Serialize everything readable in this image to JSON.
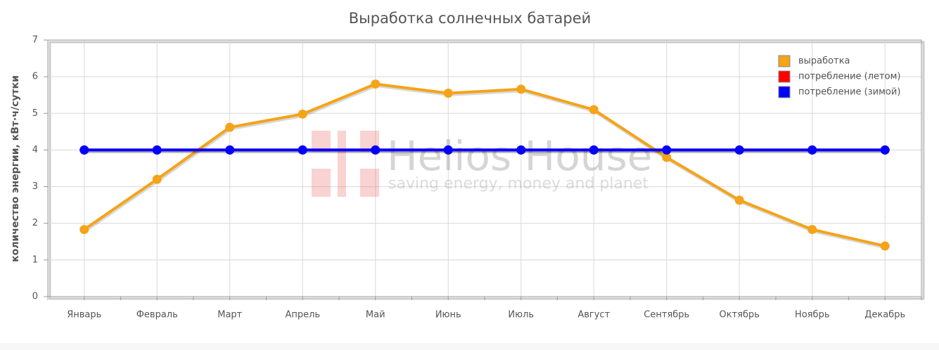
{
  "chart_data": {
    "type": "line",
    "title": "Выработка солнечных батарей",
    "y_label": "количество энергии, кВт·ч/сутки",
    "watermark": {
      "title": "Helios House",
      "subtitle": "saving energy, money and planet"
    },
    "categories": [
      "Январь",
      "Февраль",
      "Март",
      "Апрель",
      "Май",
      "Июнь",
      "Июль",
      "Август",
      "Сентябрь",
      "Октябрь",
      "Ноябрь",
      "Декабрь"
    ],
    "series": [
      {
        "name": "выработка",
        "color": "#f5a318",
        "values": [
          1.83,
          3.2,
          4.62,
          4.98,
          5.8,
          5.55,
          5.66,
          5.1,
          3.8,
          2.63,
          1.83,
          1.38
        ]
      },
      {
        "name": "потребление (летом)",
        "color": "#ff0000",
        "values": [
          4,
          4,
          4,
          4,
          4,
          4,
          4,
          4,
          4,
          4,
          4,
          4
        ]
      },
      {
        "name": "потребление (зимой)",
        "color": "#0000ff",
        "values": [
          4,
          4,
          4,
          4,
          4,
          4,
          4,
          4,
          4,
          4,
          4,
          4
        ]
      }
    ],
    "ylim": [
      0,
      7
    ],
    "yticks": [
      0,
      1,
      2,
      3,
      4,
      5,
      6,
      7
    ],
    "grid": true,
    "legend": "top-right"
  }
}
